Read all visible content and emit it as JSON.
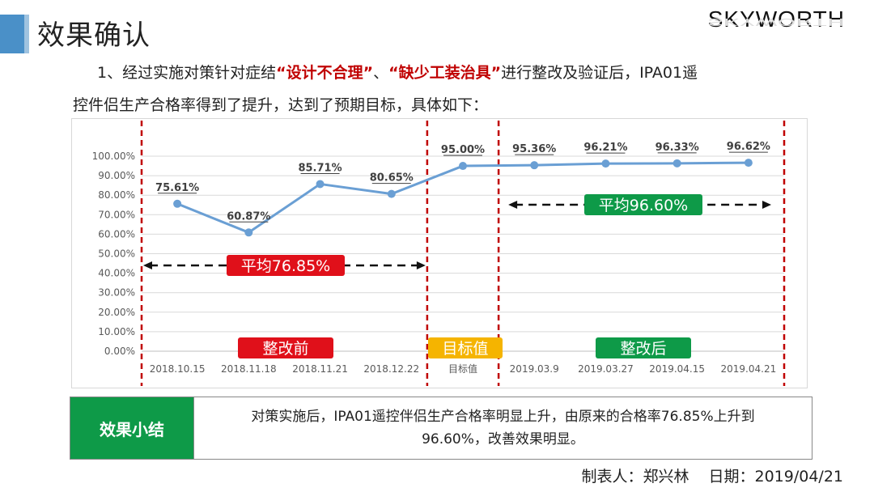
{
  "header": {
    "title": "效果确认",
    "brand": "SKYWORTH"
  },
  "intro": {
    "p1_prefix": "1、经过实施对策针对症结",
    "quote1": "“设计不合理”",
    "sep": "、",
    "quote2": "“缺少工装治具”",
    "p1_suffix": "进行整改及验证后，IPA01遥",
    "p2": "控件侣生产合格率得到了提升，达到了预期目标，具体如下："
  },
  "chart_data": {
    "type": "line",
    "categories": [
      "2018.10.15",
      "2018.11.18",
      "2018.11.21",
      "2018.12.22",
      "目标值",
      "2019.03.9",
      "2019.03.27",
      "2019.04.15",
      "2019.04.21"
    ],
    "values": [
      75.61,
      60.87,
      85.71,
      80.65,
      95.0,
      95.36,
      96.21,
      96.33,
      96.62
    ],
    "data_labels": [
      "75.61%",
      "60.87%",
      "85.71%",
      "80.65%",
      "95.00%",
      "95.36%",
      "96.21%",
      "96.33%",
      "96.62%"
    ],
    "ylim": [
      0,
      100
    ],
    "y_ticks": [
      "0.00%",
      "10.00%",
      "20.00%",
      "30.00%",
      "40.00%",
      "50.00%",
      "60.00%",
      "70.00%",
      "80.00%",
      "90.00%",
      "100.00%"
    ],
    "grid": true,
    "line_color": "#6a9fd4",
    "annotations": {
      "avg_before": "平均76.85%",
      "avg_after": "平均96.60%",
      "phase_before": "整改前",
      "phase_target": "目标值",
      "phase_after": "整改后"
    },
    "colors": {
      "avg_before": "#e0101a",
      "avg_after": "#0e9a48",
      "phase_before": "#e0101a",
      "phase_target": "#f5b400",
      "phase_after": "#0e9a48",
      "divider": "#c00000"
    }
  },
  "summary": {
    "label": "效果小结",
    "text_line1": "对策实施后，IPA01遥控伴侣生产合格率明显上升，由原来的合格率76.85%上升到",
    "text_line2": "96.60%，改善效果明显。"
  },
  "footer": {
    "maker": "制表人：郑兴林",
    "date": "日期：2019/04/21"
  }
}
